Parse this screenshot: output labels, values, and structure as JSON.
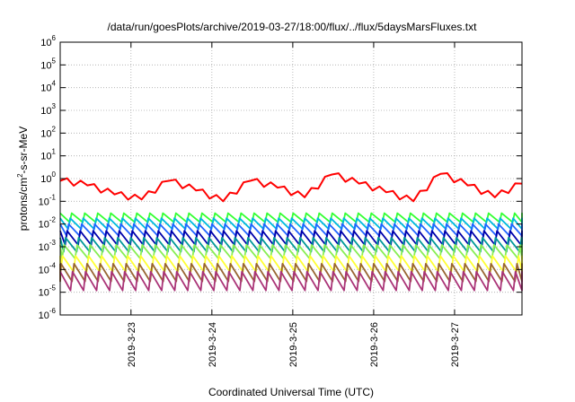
{
  "chart_data": {
    "type": "line",
    "title": "/data/run/goesPlots/archive/2019-03-27/18:00/flux/../flux/5daysMarsFluxes.txt",
    "xlabel": "Coordinated Universal Time (UTC)",
    "ylabel_parts": [
      "protons/cm",
      "2",
      "-s-sr-MeV"
    ],
    "yscale": "log",
    "ylim_exp": [
      -6,
      6
    ],
    "y_ticks": [
      {
        "base": "10",
        "exp": "-6"
      },
      {
        "base": "10",
        "exp": "-5"
      },
      {
        "base": "10",
        "exp": "-4"
      },
      {
        "base": "10",
        "exp": "-3"
      },
      {
        "base": "10",
        "exp": "-2"
      },
      {
        "base": "10",
        "exp": "-1"
      },
      {
        "base": "10",
        "exp": "0"
      },
      {
        "base": "10",
        "exp": "1"
      },
      {
        "base": "10",
        "exp": "2"
      },
      {
        "base": "10",
        "exp": "3"
      },
      {
        "base": "10",
        "exp": "4"
      },
      {
        "base": "10",
        "exp": "5"
      },
      {
        "base": "10",
        "exp": "6"
      }
    ],
    "x_range": [
      "2019-03-22 03:00",
      "2019-03-27 20:00"
    ],
    "x_ticks": [
      "2019-3-23",
      "2019-3-24",
      "2019-3-25",
      "2019-3-26",
      "2019-3-27"
    ],
    "grid": true,
    "series": [
      {
        "color": "#ff0000",
        "values": [
          0.8,
          0.5,
          0.2,
          0.12,
          0.8,
          0.3,
          0.1,
          0.8,
          0.4,
          0.15,
          1.5,
          0.6,
          0.25,
          0.1,
          1.6,
          0.5,
          0.15,
          0.6
        ]
      },
      {
        "color": "#33ff33",
        "range": [
          0.012,
          0.03
        ]
      },
      {
        "color": "#00bbdd",
        "range": [
          0.006,
          0.018
        ]
      },
      {
        "color": "#2266ff",
        "range": [
          0.003,
          0.01
        ]
      },
      {
        "color": "#0000aa",
        "range": [
          0.0012,
          0.005
        ]
      },
      {
        "color": "#009999",
        "range": [
          0.0006,
          0.0025
        ]
      },
      {
        "color": "#88ee55",
        "range": [
          0.0003,
          0.0012
        ]
      },
      {
        "color": "#ffff33",
        "range": [
          8e-05,
          0.0004
        ]
      },
      {
        "color": "#996633",
        "range": [
          3e-05,
          0.00018
        ]
      },
      {
        "color": "#aa3377",
        "range": [
          1.2e-05,
          8e-05
        ]
      }
    ]
  }
}
